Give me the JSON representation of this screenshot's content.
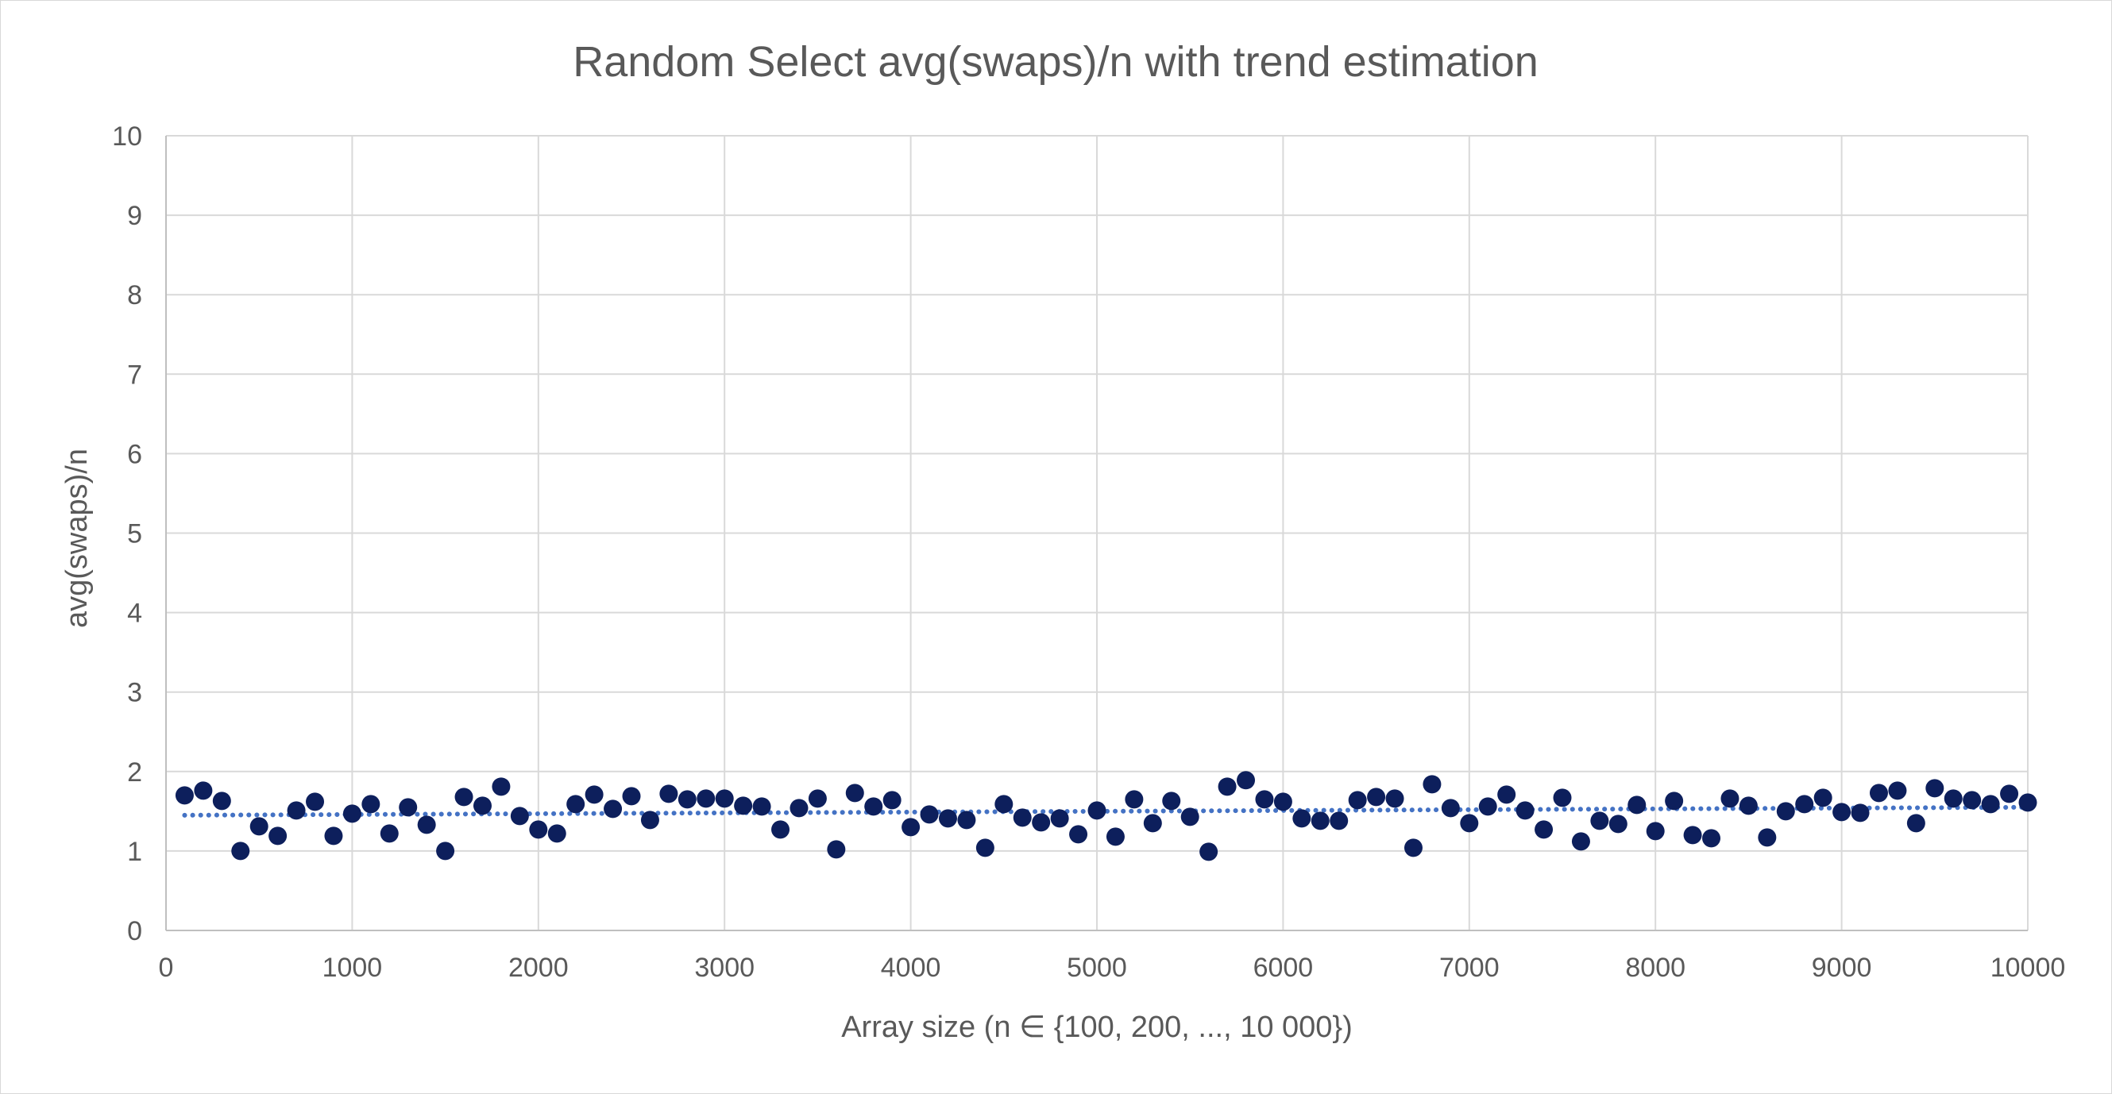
{
  "chart_data": {
    "type": "scatter",
    "title": "Random Select avg(swaps)/n with trend estimation",
    "xlabel": "Array size (n ∈ {100, 200, ..., 10 000})",
    "ylabel": "avg(swaps)/n",
    "xlim": [
      0,
      10000
    ],
    "ylim": [
      0,
      10
    ],
    "x_ticks": [
      0,
      1000,
      2000,
      3000,
      4000,
      5000,
      6000,
      7000,
      8000,
      9000,
      10000
    ],
    "y_ticks": [
      0,
      1,
      2,
      3,
      4,
      5,
      6,
      7,
      8,
      9,
      10
    ],
    "grid": true,
    "legend": "none",
    "series": [
      {
        "color": "#0d1f5c",
        "x": [
          100,
          200,
          300,
          400,
          500,
          600,
          700,
          800,
          900,
          1000,
          1100,
          1200,
          1300,
          1400,
          1500,
          1600,
          1700,
          1800,
          1900,
          2000,
          2100,
          2200,
          2300,
          2400,
          2500,
          2600,
          2700,
          2800,
          2900,
          3000,
          3100,
          3200,
          3300,
          3400,
          3500,
          3600,
          3700,
          3800,
          3900,
          4000,
          4100,
          4200,
          4300,
          4400,
          4500,
          4600,
          4700,
          4800,
          4900,
          5000,
          5100,
          5200,
          5300,
          5400,
          5500,
          5600,
          5700,
          5800,
          5900,
          6000,
          6100,
          6200,
          6300,
          6400,
          6500,
          6600,
          6700,
          6800,
          6900,
          7000,
          7100,
          7200,
          7300,
          7400,
          7500,
          7600,
          7700,
          7800,
          7900,
          8000,
          8100,
          8200,
          8300,
          8400,
          8500,
          8600,
          8700,
          8800,
          8900,
          9000,
          9100,
          9200,
          9300,
          9400,
          9500,
          9600,
          9700,
          9800,
          9900,
          10000
        ],
        "y": [
          1.7,
          1.76,
          1.63,
          1.0,
          1.31,
          1.19,
          1.51,
          1.62,
          1.19,
          1.47,
          1.59,
          1.22,
          1.55,
          1.33,
          1.0,
          1.68,
          1.57,
          1.81,
          1.44,
          1.27,
          1.22,
          1.59,
          1.71,
          1.53,
          1.69,
          1.39,
          1.72,
          1.65,
          1.66,
          1.66,
          1.57,
          1.56,
          1.27,
          1.54,
          1.66,
          1.02,
          1.73,
          1.56,
          1.64,
          1.3,
          1.46,
          1.41,
          1.39,
          1.04,
          1.59,
          1.42,
          1.36,
          1.41,
          1.21,
          1.51,
          1.18,
          1.65,
          1.35,
          1.63,
          1.43,
          0.99,
          1.81,
          1.89,
          1.65,
          1.62,
          1.41,
          1.38,
          1.38,
          1.64,
          1.68,
          1.66,
          1.04,
          1.84,
          1.54,
          1.35,
          1.56,
          1.71,
          1.51,
          1.27,
          1.67,
          1.12,
          1.38,
          1.34,
          1.58,
          1.25,
          1.63,
          1.2,
          1.16,
          1.66,
          1.57,
          1.17,
          1.5,
          1.59,
          1.67,
          1.49,
          1.48,
          1.73,
          1.76,
          1.35,
          1.79,
          1.66,
          1.64,
          1.59,
          1.72,
          1.61
        ]
      }
    ],
    "trendline": {
      "type": "linear",
      "style": "dotted",
      "color": "#4472c4",
      "x": [
        100,
        10000
      ],
      "y": [
        1.45,
        1.55
      ]
    }
  }
}
